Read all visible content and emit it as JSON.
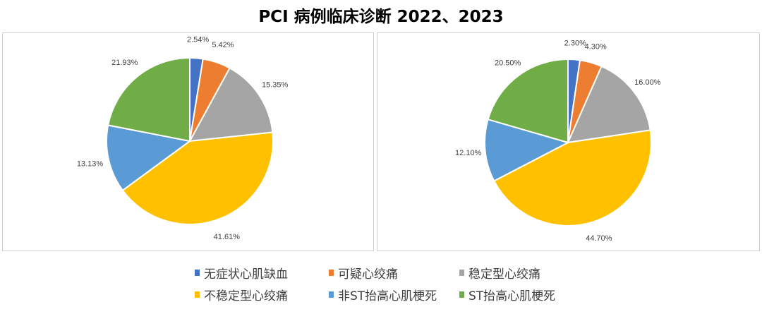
{
  "title": "PCI 病例临床诊断 2022、2023",
  "chart_data": [
    {
      "type": "pie",
      "categories": [
        "无症状心肌缺血",
        "可疑心绞痛",
        "稳定型心绞痛",
        "不稳定型心绞痛",
        "非ST抬高心肌梗死",
        "ST抬高心肌梗死"
      ],
      "values": [
        2.54,
        5.42,
        15.35,
        41.61,
        13.13,
        21.93
      ],
      "labels": [
        "2.54%",
        "5.42%",
        "15.35%",
        "41.61%",
        "13.13%",
        "21.93%"
      ]
    },
    {
      "type": "pie",
      "categories": [
        "无症状心肌缺血",
        "可疑心绞痛",
        "稳定型心绞痛",
        "不稳定型心绞痛",
        "非ST抬高心肌梗死",
        "ST抬高心肌梗死"
      ],
      "values": [
        2.3,
        4.3,
        16.0,
        44.7,
        12.1,
        20.5
      ],
      "labels": [
        "2.30%",
        "4.30%",
        "16.00%",
        "44.70%",
        "12.10%",
        "20.50%"
      ]
    }
  ],
  "legend": [
    {
      "label": "无症状心肌缺血",
      "color": "#4472C4"
    },
    {
      "label": "可疑心绞痛",
      "color": "#ED7D31"
    },
    {
      "label": "稳定型心绞痛",
      "color": "#A5A5A5"
    },
    {
      "label": "不稳定型心绞痛",
      "color": "#FFC000"
    },
    {
      "label": "非ST抬高心肌梗死",
      "color": "#5B9BD5"
    },
    {
      "label": "ST抬高心肌梗死",
      "color": "#70AD47"
    }
  ]
}
